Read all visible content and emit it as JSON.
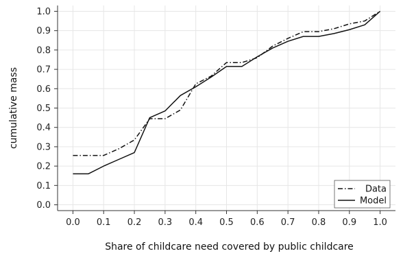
{
  "chart_data": {
    "type": "line",
    "title": "",
    "xlabel": "Share of childcare need covered by public childcare",
    "ylabel": "cumulative mass",
    "xlim": [
      -0.05,
      1.05
    ],
    "ylim": [
      -0.03,
      1.03
    ],
    "x_ticks": [
      "0.0",
      "0.1",
      "0.2",
      "0.3",
      "0.4",
      "0.5",
      "0.6",
      "0.7",
      "0.8",
      "0.9",
      "1.0"
    ],
    "y_ticks": [
      "0.0",
      "0.1",
      "0.2",
      "0.3",
      "0.4",
      "0.5",
      "0.6",
      "0.7",
      "0.8",
      "0.9",
      "1.0"
    ],
    "grid": true,
    "legend_position": "bottom-right",
    "series": [
      {
        "name": "Data",
        "style": "dash-dot",
        "color": "#111111",
        "x": [
          0.0,
          0.05,
          0.1,
          0.15,
          0.2,
          0.25,
          0.3,
          0.35,
          0.4,
          0.45,
          0.5,
          0.55,
          0.6,
          0.65,
          0.7,
          0.75,
          0.8,
          0.85,
          0.9,
          0.95,
          1.0
        ],
        "values": [
          0.255,
          0.255,
          0.255,
          0.29,
          0.335,
          0.445,
          0.445,
          0.49,
          0.625,
          0.665,
          0.735,
          0.735,
          0.76,
          0.82,
          0.86,
          0.895,
          0.895,
          0.91,
          0.935,
          0.95,
          1.0
        ]
      },
      {
        "name": "Model",
        "style": "solid",
        "color": "#111111",
        "x": [
          0.0,
          0.05,
          0.1,
          0.15,
          0.2,
          0.25,
          0.3,
          0.35,
          0.4,
          0.45,
          0.5,
          0.55,
          0.6,
          0.65,
          0.7,
          0.75,
          0.8,
          0.85,
          0.9,
          0.95,
          1.0
        ],
        "values": [
          0.16,
          0.16,
          0.2,
          0.235,
          0.27,
          0.45,
          0.485,
          0.565,
          0.61,
          0.66,
          0.715,
          0.715,
          0.765,
          0.81,
          0.845,
          0.87,
          0.87,
          0.885,
          0.905,
          0.93,
          1.0
        ]
      }
    ]
  }
}
